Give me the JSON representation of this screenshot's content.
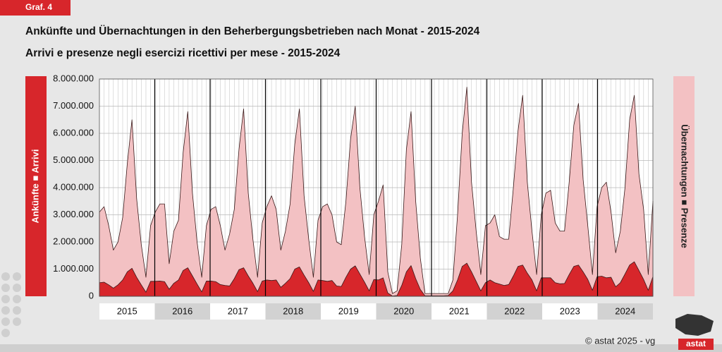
{
  "tag": "Graf. 4",
  "chart_data": {
    "type": "area",
    "title": "Ankünfte und Übernachtungen in den Beherbergungsbetrieben nach Monat - 2015-2024",
    "subtitle": "Arrivi e presenze negli esercizi ricettivi per mese - 2015-2024",
    "year_groups": [
      "2015",
      "2016",
      "2017",
      "2018",
      "2019",
      "2020",
      "2021",
      "2022",
      "2023",
      "2024"
    ],
    "ylim": [
      0,
      8000000
    ],
    "yticks": [
      0,
      {
        "value": 1000000,
        "label": "1.000.000"
      },
      {
        "value": 2000000,
        "label": "2.000.000"
      },
      {
        "value": 3000000,
        "label": "3.000.000"
      },
      {
        "value": 4000000,
        "label": "4.000.000"
      },
      {
        "value": 5000000,
        "label": "5.000.000"
      },
      {
        "value": 6000000,
        "label": "6.000.000"
      },
      {
        "value": 7000000,
        "label": "7.000.000"
      },
      {
        "value": 8000000,
        "label": "8.000.000"
      }
    ],
    "grid": true,
    "series": [
      {
        "name": "Übernachtungen ■ Presenze",
        "color": "#f3c1c3",
        "values": [
          3100000,
          3300000,
          2600000,
          1700000,
          2000000,
          2900000,
          4900000,
          6500000,
          3600000,
          1900000,
          700000,
          2600000,
          3100000,
          3400000,
          3400000,
          1200000,
          2400000,
          2800000,
          5300000,
          6800000,
          3800000,
          2000000,
          700000,
          2600000,
          3200000,
          3300000,
          2600000,
          1700000,
          2300000,
          3200000,
          5400000,
          6900000,
          3800000,
          2100000,
          700000,
          2700000,
          3300000,
          3700000,
          3200000,
          1700000,
          2400000,
          3400000,
          5600000,
          6900000,
          3700000,
          2100000,
          700000,
          2800000,
          3300000,
          3400000,
          3000000,
          2000000,
          1900000,
          3500000,
          5800000,
          7000000,
          4000000,
          2200000,
          800000,
          3000000,
          3500000,
          4100000,
          900000,
          100000,
          200000,
          1900000,
          5400000,
          6800000,
          3500000,
          1400000,
          100000,
          100000,
          100000,
          100000,
          100000,
          100000,
          600000,
          3000000,
          6000000,
          7700000,
          4200000,
          2400000,
          800000,
          2600000,
          2700000,
          3000000,
          2200000,
          2100000,
          2100000,
          4000000,
          6100000,
          7400000,
          4200000,
          2400000,
          800000,
          3000000,
          3800000,
          3900000,
          2700000,
          2400000,
          2400000,
          4200000,
          6300000,
          7100000,
          4300000,
          2600000,
          800000,
          3300000,
          4000000,
          4200000,
          3100000,
          1600000,
          2400000,
          4000000,
          6500000,
          7400000,
          4500000,
          3200000,
          800000,
          3500000
        ]
      },
      {
        "name": "Ankünfte ■ Arrivi",
        "color": "#d7262b",
        "values": [
          500000,
          520000,
          420000,
          300000,
          420000,
          600000,
          900000,
          1030000,
          700000,
          420000,
          150000,
          550000,
          550000,
          560000,
          540000,
          260000,
          480000,
          600000,
          950000,
          1050000,
          750000,
          450000,
          160000,
          560000,
          560000,
          540000,
          430000,
          400000,
          380000,
          650000,
          980000,
          1050000,
          750000,
          480000,
          170000,
          560000,
          600000,
          580000,
          600000,
          330000,
          480000,
          650000,
          1000000,
          1080000,
          780000,
          500000,
          180000,
          600000,
          580000,
          550000,
          580000,
          380000,
          360000,
          700000,
          1000000,
          1120000,
          820000,
          520000,
          200000,
          620000,
          600000,
          680000,
          120000,
          10000,
          30000,
          400000,
          900000,
          1130000,
          650000,
          250000,
          20000,
          20000,
          20000,
          20000,
          20000,
          30000,
          200000,
          600000,
          1100000,
          1220000,
          900000,
          550000,
          200000,
          500000,
          600000,
          500000,
          450000,
          400000,
          430000,
          750000,
          1100000,
          1150000,
          850000,
          600000,
          200000,
          680000,
          680000,
          680000,
          500000,
          460000,
          470000,
          800000,
          1100000,
          1150000,
          900000,
          620000,
          220000,
          720000,
          740000,
          680000,
          700000,
          350000,
          500000,
          820000,
          1150000,
          1270000,
          950000,
          620000,
          220000,
          720000
        ]
      }
    ]
  },
  "source": "© astat 2025 - vg",
  "logo": "astat"
}
